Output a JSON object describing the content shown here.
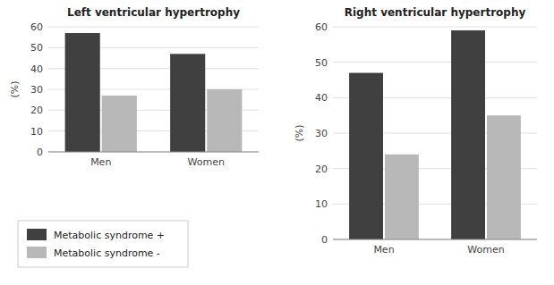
{
  "chart_data": [
    {
      "type": "bar",
      "title": "Left ventricular hypertrophy",
      "categories": [
        "Men",
        "Women"
      ],
      "series": [
        {
          "name": "Metabolic syndrome +",
          "color": "#404040",
          "values": [
            57,
            47
          ]
        },
        {
          "name": "Metabolic syndrome -",
          "color": "#b8b8b8",
          "values": [
            27,
            30
          ]
        }
      ],
      "y_label": "(%)",
      "ylim": [
        0,
        60
      ],
      "yticks": [
        0,
        10,
        20,
        30,
        40,
        50,
        60
      ],
      "grid": true,
      "legend": "lower left"
    },
    {
      "type": "bar",
      "title": "Right ventricular hypertrophy",
      "categories": [
        "Men",
        "Women"
      ],
      "series": [
        {
          "color": "#404040",
          "values": [
            47,
            59
          ]
        },
        {
          "color": "#b8b8b8",
          "values": [
            24,
            35
          ]
        }
      ],
      "y_label": "(%)",
      "ylim": [
        0,
        60
      ],
      "yticks": [
        0,
        10,
        20,
        30,
        40,
        50,
        60
      ],
      "grid": true
    }
  ]
}
